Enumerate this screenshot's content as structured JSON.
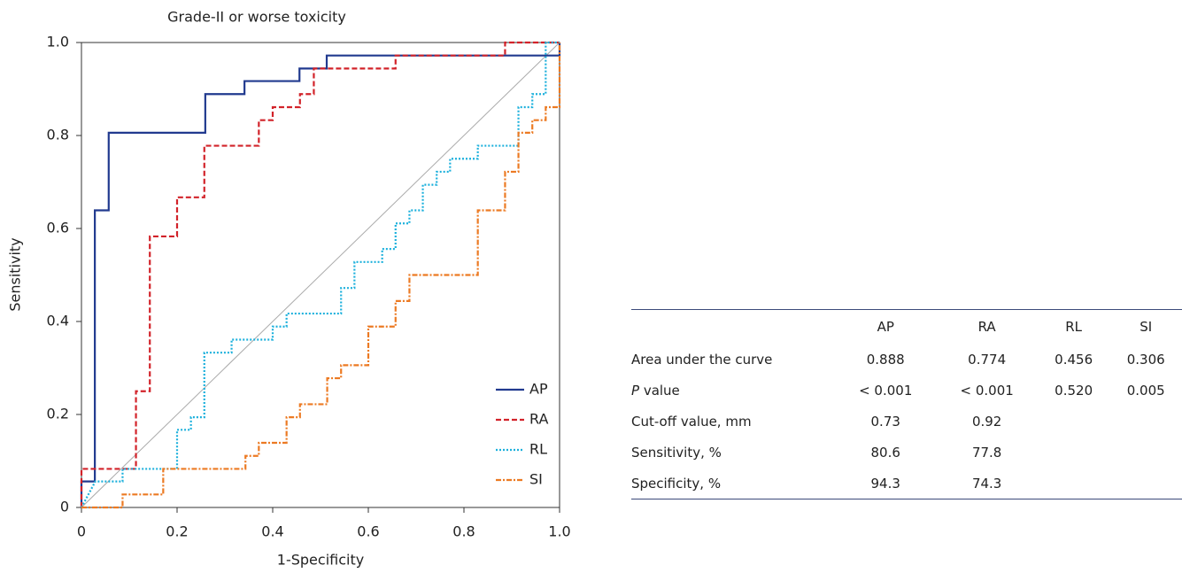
{
  "chart_data": {
    "type": "line",
    "title": "Grade-II or worse toxicity",
    "x_label": "1-Specificity",
    "y_label": "Sensitivity",
    "xlim": [
      0,
      1
    ],
    "ylim": [
      0,
      1
    ],
    "xticks": [
      0,
      0.2,
      0.4,
      0.6,
      0.8,
      {
        "value": 1,
        "label": "1.0"
      }
    ],
    "yticks": [
      0,
      0.2,
      0.4,
      0.6,
      0.8,
      {
        "value": 1,
        "label": "1.0"
      }
    ],
    "legend": "lower right",
    "series": [
      {
        "name": "AP",
        "color": "#213a8f",
        "dash": "solid",
        "x": [
          0,
          0,
          0.028,
          0.028,
          0.057,
          0.057,
          0.259,
          0.259,
          0.341,
          0.341,
          0.456,
          0.456,
          0.513,
          0.513,
          1,
          1
        ],
        "y": [
          0,
          0.056,
          0.056,
          0.639,
          0.639,
          0.806,
          0.806,
          0.889,
          0.889,
          0.917,
          0.917,
          0.944,
          0.944,
          0.972,
          0.972,
          1
        ]
      },
      {
        "name": "RA",
        "color": "#d2232a",
        "dash": "dashed",
        "x": [
          0,
          0,
          0.114,
          0.114,
          0.143,
          0.143,
          0.2,
          0.2,
          0.257,
          0.257,
          0.371,
          0.371,
          0.4,
          0.4,
          0.457,
          0.457,
          0.486,
          0.486,
          0.657,
          0.657,
          0.886,
          0.886,
          1
        ],
        "y": [
          0,
          0.083,
          0.083,
          0.25,
          0.25,
          0.583,
          0.583,
          0.667,
          0.667,
          0.778,
          0.778,
          0.833,
          0.833,
          0.861,
          0.861,
          0.889,
          0.889,
          0.944,
          0.944,
          0.972,
          0.972,
          1,
          1
        ]
      },
      {
        "name": "RL",
        "color": "#1cb0dc",
        "dash": "dotted",
        "x": [
          0,
          0.029,
          0.086,
          0.086,
          0.2,
          0.2,
          0.229,
          0.229,
          0.257,
          0.257,
          0.314,
          0.314,
          0.4,
          0.4,
          0.429,
          0.429,
          0.543,
          0.543,
          0.571,
          0.571,
          0.629,
          0.629,
          0.657,
          0.657,
          0.686,
          0.686,
          0.714,
          0.714,
          0.743,
          0.743,
          0.771,
          0.771,
          0.829,
          0.829,
          0.914,
          0.914,
          0.943,
          0.943,
          0.971,
          0.971,
          1
        ],
        "y": [
          0,
          0.056,
          0.056,
          0.083,
          0.083,
          0.167,
          0.167,
          0.194,
          0.194,
          0.333,
          0.333,
          0.361,
          0.361,
          0.389,
          0.389,
          0.417,
          0.417,
          0.472,
          0.472,
          0.528,
          0.528,
          0.556,
          0.556,
          0.611,
          0.611,
          0.639,
          0.639,
          0.694,
          0.694,
          0.722,
          0.722,
          0.75,
          0.75,
          0.778,
          0.778,
          0.861,
          0.861,
          0.889,
          0.889,
          1,
          1
        ]
      },
      {
        "name": "SI",
        "color": "#ec7a23",
        "dash": "dashdot",
        "x": [
          0,
          0.086,
          0.086,
          0.171,
          0.171,
          0.343,
          0.343,
          0.371,
          0.371,
          0.429,
          0.429,
          0.457,
          0.457,
          0.514,
          0.514,
          0.543,
          0.543,
          0.6,
          0.6,
          0.657,
          0.657,
          0.686,
          0.686,
          0.829,
          0.829,
          0.886,
          0.886,
          0.914,
          0.914,
          0.943,
          0.943,
          0.971,
          0.971,
          1,
          1
        ],
        "y": [
          0,
          0,
          0.028,
          0.028,
          0.083,
          0.083,
          0.111,
          0.111,
          0.139,
          0.139,
          0.194,
          0.194,
          0.222,
          0.222,
          0.278,
          0.278,
          0.306,
          0.306,
          0.389,
          0.389,
          0.444,
          0.444,
          0.5,
          0.5,
          0.639,
          0.639,
          0.722,
          0.722,
          0.806,
          0.806,
          0.833,
          0.833,
          0.861,
          0.861,
          1
        ]
      }
    ]
  },
  "table": {
    "columns": [
      "AP",
      "RA",
      "RL",
      "SI"
    ],
    "rows": [
      {
        "label": "Area under the curve",
        "cells": [
          "0.888",
          "0.774",
          "0.456",
          "0.306"
        ]
      },
      {
        "label": "P value",
        "cells": [
          "< 0.001",
          "< 0.001",
          "0.520",
          "0.005"
        ]
      },
      {
        "label": "Cut-off value, mm",
        "cells": [
          "0.73",
          "0.92",
          null,
          null
        ]
      },
      {
        "label": "Sensitivity, %",
        "cells": [
          "80.6",
          "77.8",
          null,
          null
        ]
      },
      {
        "label": "Specificity, %",
        "cells": [
          "94.3",
          "74.3",
          null,
          null
        ]
      }
    ]
  }
}
